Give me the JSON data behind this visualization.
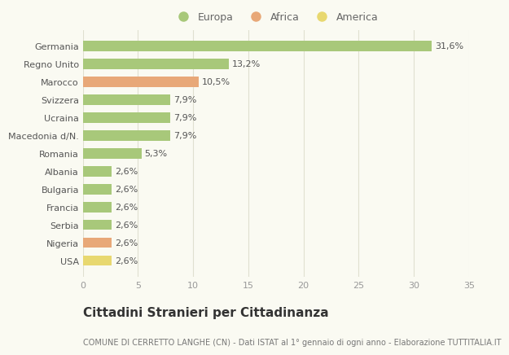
{
  "categories": [
    "Germania",
    "Regno Unito",
    "Marocco",
    "Svizzera",
    "Ucraina",
    "Macedonia d/N.",
    "Romania",
    "Albania",
    "Bulgaria",
    "Francia",
    "Serbia",
    "Nigeria",
    "USA"
  ],
  "values": [
    31.6,
    13.2,
    10.5,
    7.9,
    7.9,
    7.9,
    5.3,
    2.6,
    2.6,
    2.6,
    2.6,
    2.6,
    2.6
  ],
  "labels": [
    "31,6%",
    "13,2%",
    "10,5%",
    "7,9%",
    "7,9%",
    "7,9%",
    "5,3%",
    "2,6%",
    "2,6%",
    "2,6%",
    "2,6%",
    "2,6%",
    "2,6%"
  ],
  "continents": [
    "Europa",
    "Europa",
    "Africa",
    "Europa",
    "Europa",
    "Europa",
    "Europa",
    "Europa",
    "Europa",
    "Europa",
    "Europa",
    "Africa",
    "America"
  ],
  "colors": {
    "Europa": "#a8c87a",
    "Africa": "#e8a878",
    "America": "#e8d870"
  },
  "xlim": [
    0,
    35
  ],
  "xticks": [
    0,
    5,
    10,
    15,
    20,
    25,
    30,
    35
  ],
  "title": "Cittadini Stranieri per Cittadinanza",
  "subtitle": "COMUNE DI CERRETTO LANGHE (CN) - Dati ISTAT al 1° gennaio di ogni anno - Elaborazione TUTTITALIA.IT",
  "background_color": "#fafaf2",
  "grid_color": "#e0e0d0",
  "bar_height": 0.55,
  "title_fontsize": 11,
  "subtitle_fontsize": 7,
  "label_fontsize": 8,
  "tick_fontsize": 8,
  "legend_fontsize": 9
}
